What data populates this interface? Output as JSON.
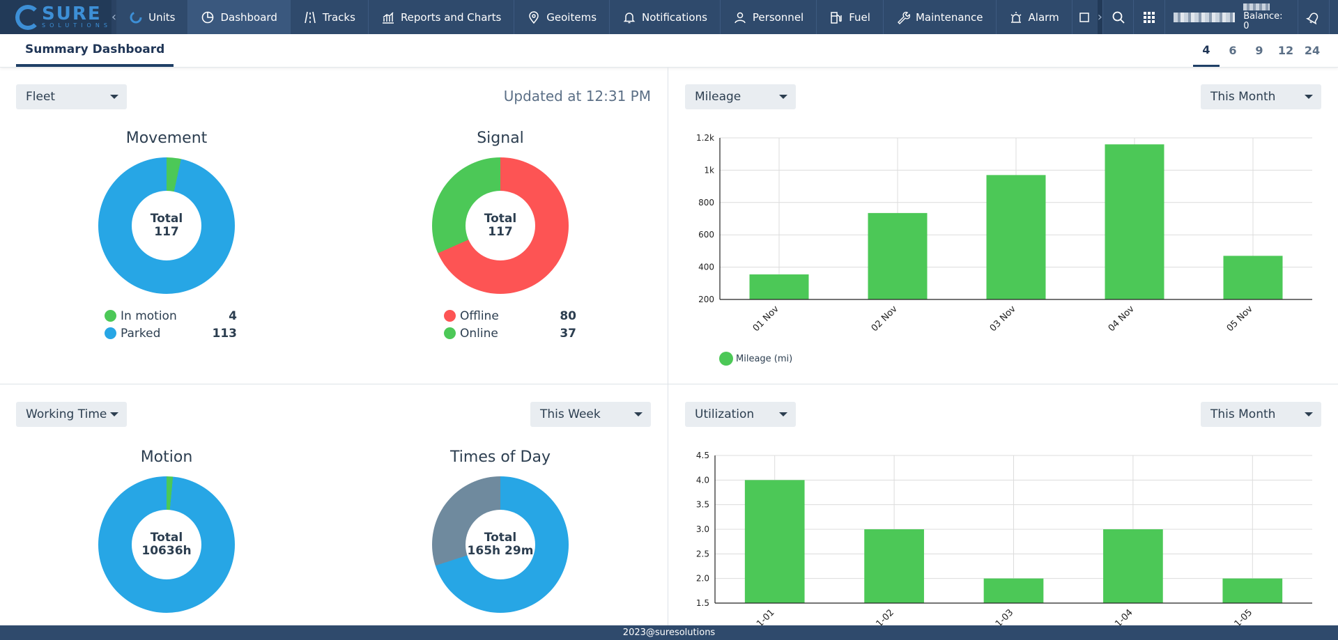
{
  "brand": {
    "logo_word": "SURE",
    "logo_sub": "SOLUTIONS"
  },
  "nav": {
    "items": [
      {
        "label": "Units",
        "icon": "units-icon"
      },
      {
        "label": "Dashboard",
        "icon": "dashboard-icon"
      },
      {
        "label": "Tracks",
        "icon": "tracks-icon"
      },
      {
        "label": "Reports and Charts",
        "icon": "reports-icon"
      },
      {
        "label": "Geoitems",
        "icon": "geoitems-icon"
      },
      {
        "label": "Notifications",
        "icon": "bell-icon"
      },
      {
        "label": "Personnel",
        "icon": "person-icon"
      },
      {
        "label": "Fuel",
        "icon": "fuel-icon"
      },
      {
        "label": "Maintenance",
        "icon": "wrench-icon"
      },
      {
        "label": "Alarm",
        "icon": "alarm-icon"
      }
    ],
    "active": "Dashboard",
    "balance": "Balance: 0"
  },
  "subheader": {
    "tab": "Summary Dashboard",
    "layouts": [
      "4",
      "6",
      "9",
      "12",
      "24"
    ],
    "active_layout": "4"
  },
  "panel_fleet": {
    "dropdown": "Fleet",
    "updated": "Updated at 12:31 PM",
    "movement": {
      "title": "Movement",
      "total_label": "Total",
      "total_value": "117",
      "legend": [
        {
          "label": "In motion",
          "value": "4",
          "color": "#4cc857"
        },
        {
          "label": "Parked",
          "value": "113",
          "color": "#27a6e5"
        }
      ]
    },
    "signal": {
      "title": "Signal",
      "total_label": "Total",
      "total_value": "117",
      "legend": [
        {
          "label": "Offline",
          "value": "80",
          "color": "#fd5454"
        },
        {
          "label": "Online",
          "value": "37",
          "color": "#4cc857"
        }
      ]
    }
  },
  "panel_mileage": {
    "dropdown": "Mileage",
    "period": "This Month",
    "legend_label": "Mileage (mi)",
    "color": "#4cc857"
  },
  "panel_working": {
    "dropdown": "Working Time",
    "period": "This Week",
    "motion": {
      "title": "Motion",
      "total_label": "Total",
      "total_value": "10636h",
      "colors": [
        "#4cc857",
        "#27a6e5"
      ],
      "fractions": [
        0.015,
        0.985
      ]
    },
    "times_of_day": {
      "title": "Times of Day",
      "total_label": "Total",
      "total_value": "165h 29m",
      "colors": [
        "#27a6e5",
        "#6f8a9e"
      ],
      "fractions": [
        0.7,
        0.3
      ]
    }
  },
  "panel_utilization": {
    "dropdown": "Utilization",
    "period": "This Month",
    "color": "#4cc857"
  },
  "footer": {
    "text": "2023@suresolutions"
  },
  "chart_data": [
    {
      "type": "pie",
      "title": "Movement",
      "categories": [
        "In motion",
        "Parked"
      ],
      "values": [
        4,
        113
      ],
      "colors": [
        "#4cc857",
        "#27a6e5"
      ]
    },
    {
      "type": "pie",
      "title": "Signal",
      "categories": [
        "Offline",
        "Online"
      ],
      "values": [
        80,
        37
      ],
      "colors": [
        "#fd5454",
        "#4cc857"
      ]
    },
    {
      "type": "bar",
      "title": "",
      "categories": [
        "01 Nov",
        "02 Nov",
        "03 Nov",
        "04 Nov",
        "05 Nov"
      ],
      "series": [
        {
          "name": "Mileage (mi)",
          "values": [
            355,
            735,
            970,
            1160,
            470
          ]
        }
      ],
      "ylim": [
        200,
        1200
      ],
      "yticks": [
        200,
        400,
        600,
        800,
        1000,
        1200
      ],
      "ytick_labels": [
        "200",
        "400",
        "600",
        "800",
        "1k",
        "1.2k"
      ],
      "grid": true,
      "legend": "bottom-left"
    },
    {
      "type": "bar",
      "title": "",
      "categories": [
        "1-01",
        "1-02",
        "1-03",
        "1-04",
        "1-05"
      ],
      "values": [
        4.0,
        3.0,
        2.0,
        3.0,
        2.0
      ],
      "ylim": [
        1.5,
        4.5
      ],
      "yticks": [
        1.5,
        2.0,
        2.5,
        3.0,
        3.5,
        4.0,
        4.5
      ],
      "ytick_labels": [
        "1.5",
        "2.0",
        "2.5",
        "3.0",
        "3.5",
        "4.0",
        "4.5"
      ],
      "grid": true
    }
  ]
}
